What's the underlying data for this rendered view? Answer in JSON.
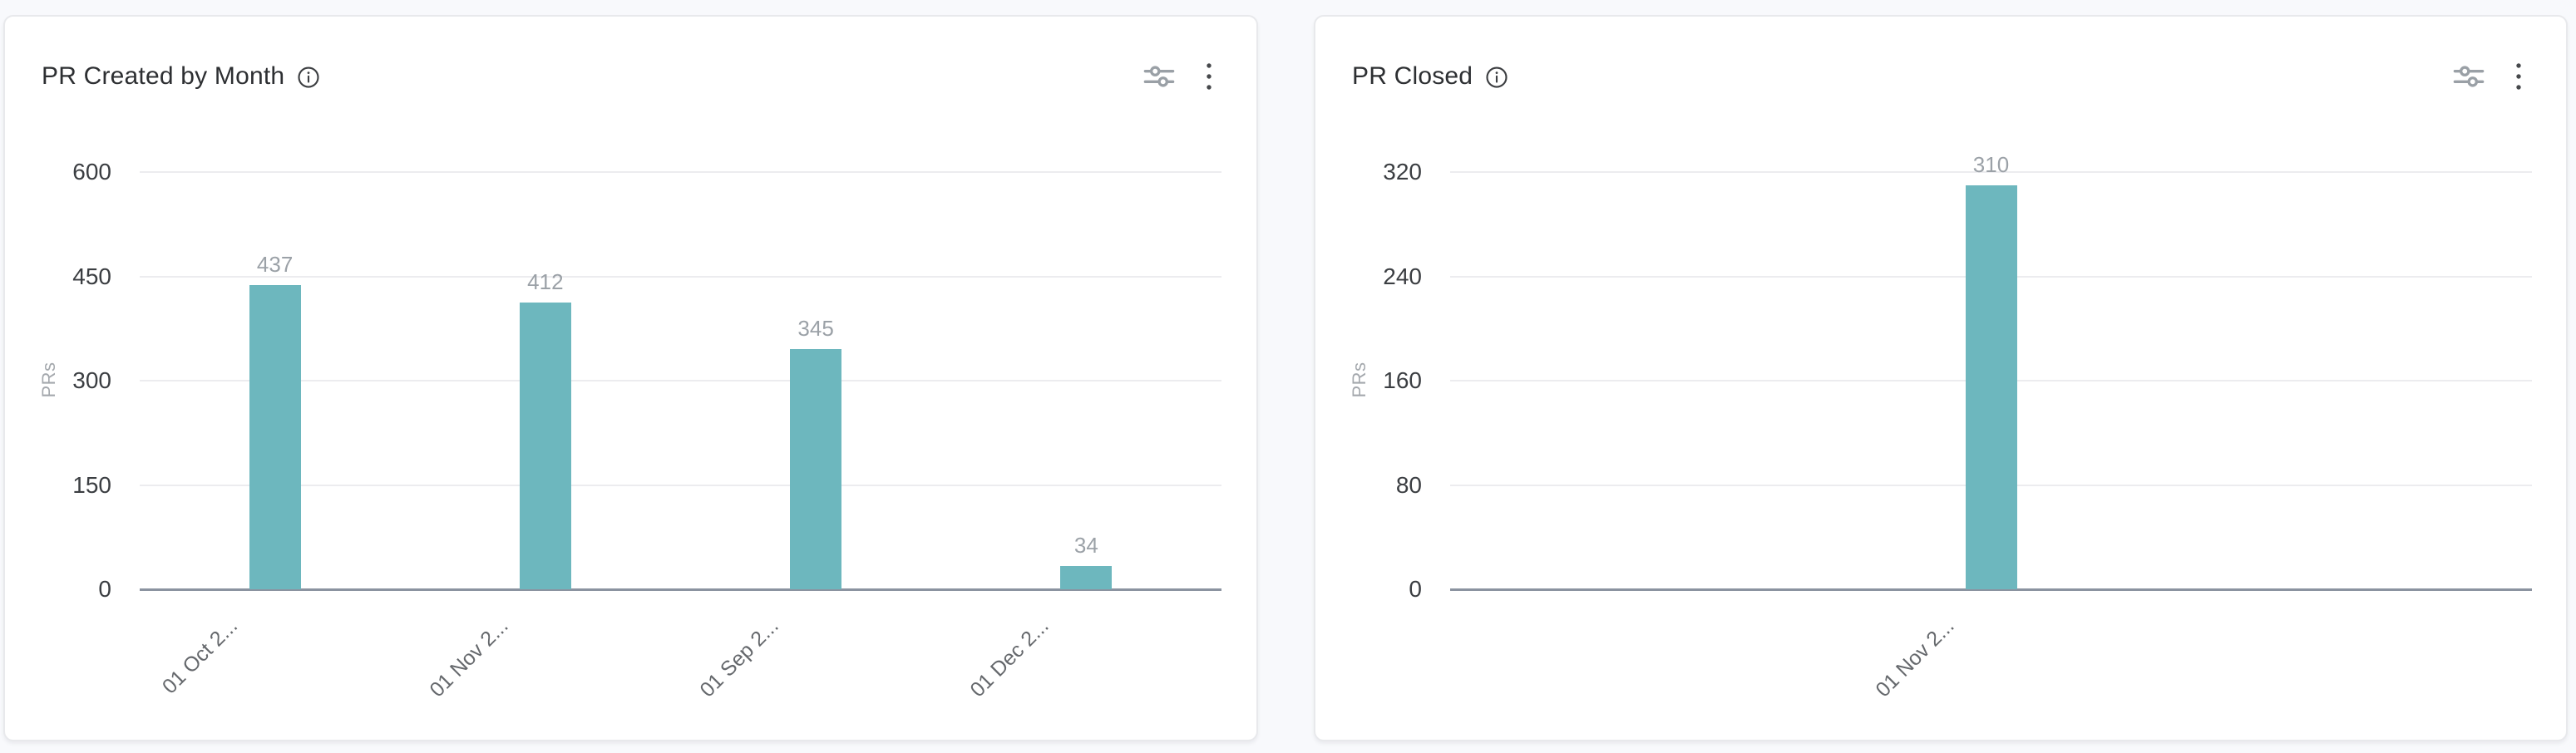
{
  "page": {
    "background": "#f8f9fc"
  },
  "cards": [
    {
      "title": "PR Created by Month",
      "icons": {
        "info": "info-icon",
        "toolbar": [
          "filter-sliders-icon",
          "kebab-menu-icon"
        ]
      }
    },
    {
      "title": "PR Closed",
      "icons": {
        "info": "info-icon",
        "toolbar": [
          "filter-sliders-icon",
          "kebab-menu-icon"
        ]
      }
    }
  ],
  "chart_data": [
    {
      "type": "bar",
      "title": "PR Created by Month",
      "categories": [
        "01 Oct 2...",
        "01 Nov 2...",
        "01 Sep 2...",
        "01 Dec 2..."
      ],
      "values": [
        437,
        412,
        345,
        34
      ],
      "xlabel": "",
      "ylabel": "PRs",
      "ylim": [
        0,
        600
      ],
      "yticks": [
        0,
        150,
        300,
        450,
        600
      ],
      "grid": true,
      "legend": false,
      "bar_color": "#6db7be",
      "value_label_color": "#9ba1a7"
    },
    {
      "type": "bar",
      "title": "PR Closed",
      "categories": [
        "01 Nov 2..."
      ],
      "values": [
        310
      ],
      "xlabel": "",
      "ylabel": "PRs",
      "ylim": [
        0,
        320
      ],
      "yticks": [
        0,
        80,
        160,
        240,
        320
      ],
      "grid": true,
      "legend": false,
      "bar_color": "#6db7be",
      "value_label_color": "#9ba1a7"
    }
  ]
}
